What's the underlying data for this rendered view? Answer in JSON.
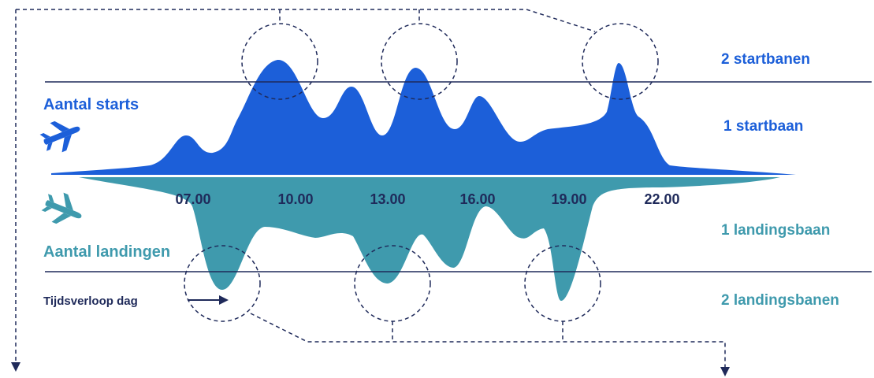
{
  "colors": {
    "starts": "#1c5fd9",
    "landings": "#3f9aad",
    "navy": "#1f2a5a",
    "divider": "#ffffff",
    "arrow": "#1f2a5a"
  },
  "labels": {
    "starts_title": "Aantal starts",
    "landings_title": "Aantal landingen",
    "time_flow": "Tijdsverloop dag"
  },
  "runway_labels": {
    "two_takeoff": "2 startbanen",
    "one_takeoff": "1 startbaan",
    "one_landing": "1 landingsbaan",
    "two_landing": "2 landingsbanen"
  },
  "time_ticks": [
    "07.00",
    "10.00",
    "13.00",
    "16.00",
    "19.00",
    "22.00"
  ],
  "icons": {
    "starts": "airplane-takeoff-icon",
    "landings": "airplane-landing-icon"
  }
}
